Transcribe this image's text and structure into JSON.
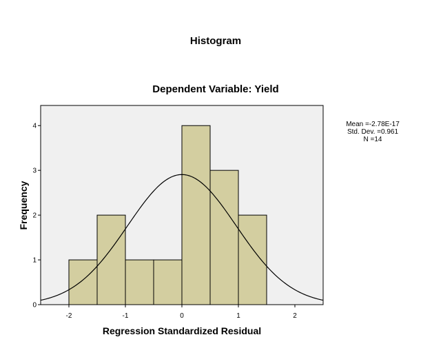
{
  "chart_data": {
    "type": "bar",
    "title": "Histogram",
    "subtitle": "Dependent Variable: Yield",
    "xlabel": "Regression Standardized Residual",
    "ylabel": "Frequency",
    "xlim": [
      -2.5,
      2.5
    ],
    "ylim": [
      0,
      4.45
    ],
    "x_ticks": [
      "-2",
      "-1",
      "0",
      "1",
      "2"
    ],
    "y_ticks": [
      "0",
      "1",
      "2",
      "3",
      "4"
    ],
    "bins": [
      {
        "from": -2.0,
        "to": -1.5,
        "value": 1
      },
      {
        "from": -1.5,
        "to": -1.0,
        "value": 2
      },
      {
        "from": -1.0,
        "to": -0.5,
        "value": 1
      },
      {
        "from": -0.5,
        "to": 0.0,
        "value": 1
      },
      {
        "from": 0.0,
        "to": 0.5,
        "value": 4
      },
      {
        "from": 0.5,
        "to": 1.0,
        "value": 3
      },
      {
        "from": 1.0,
        "to": 1.5,
        "value": 2
      }
    ],
    "normal_curve": {
      "mean": -2.78e-17,
      "sd": 0.961,
      "n": 14,
      "bin_width": 0.5
    },
    "stats": {
      "mean": "Mean =-2.78E-17",
      "sd": "Std. Dev. =0.961",
      "n": "N =14"
    },
    "colors": {
      "bar_fill": "#d3cea0",
      "plot_bg": "#f0f0f0",
      "curve": "#000000"
    }
  }
}
